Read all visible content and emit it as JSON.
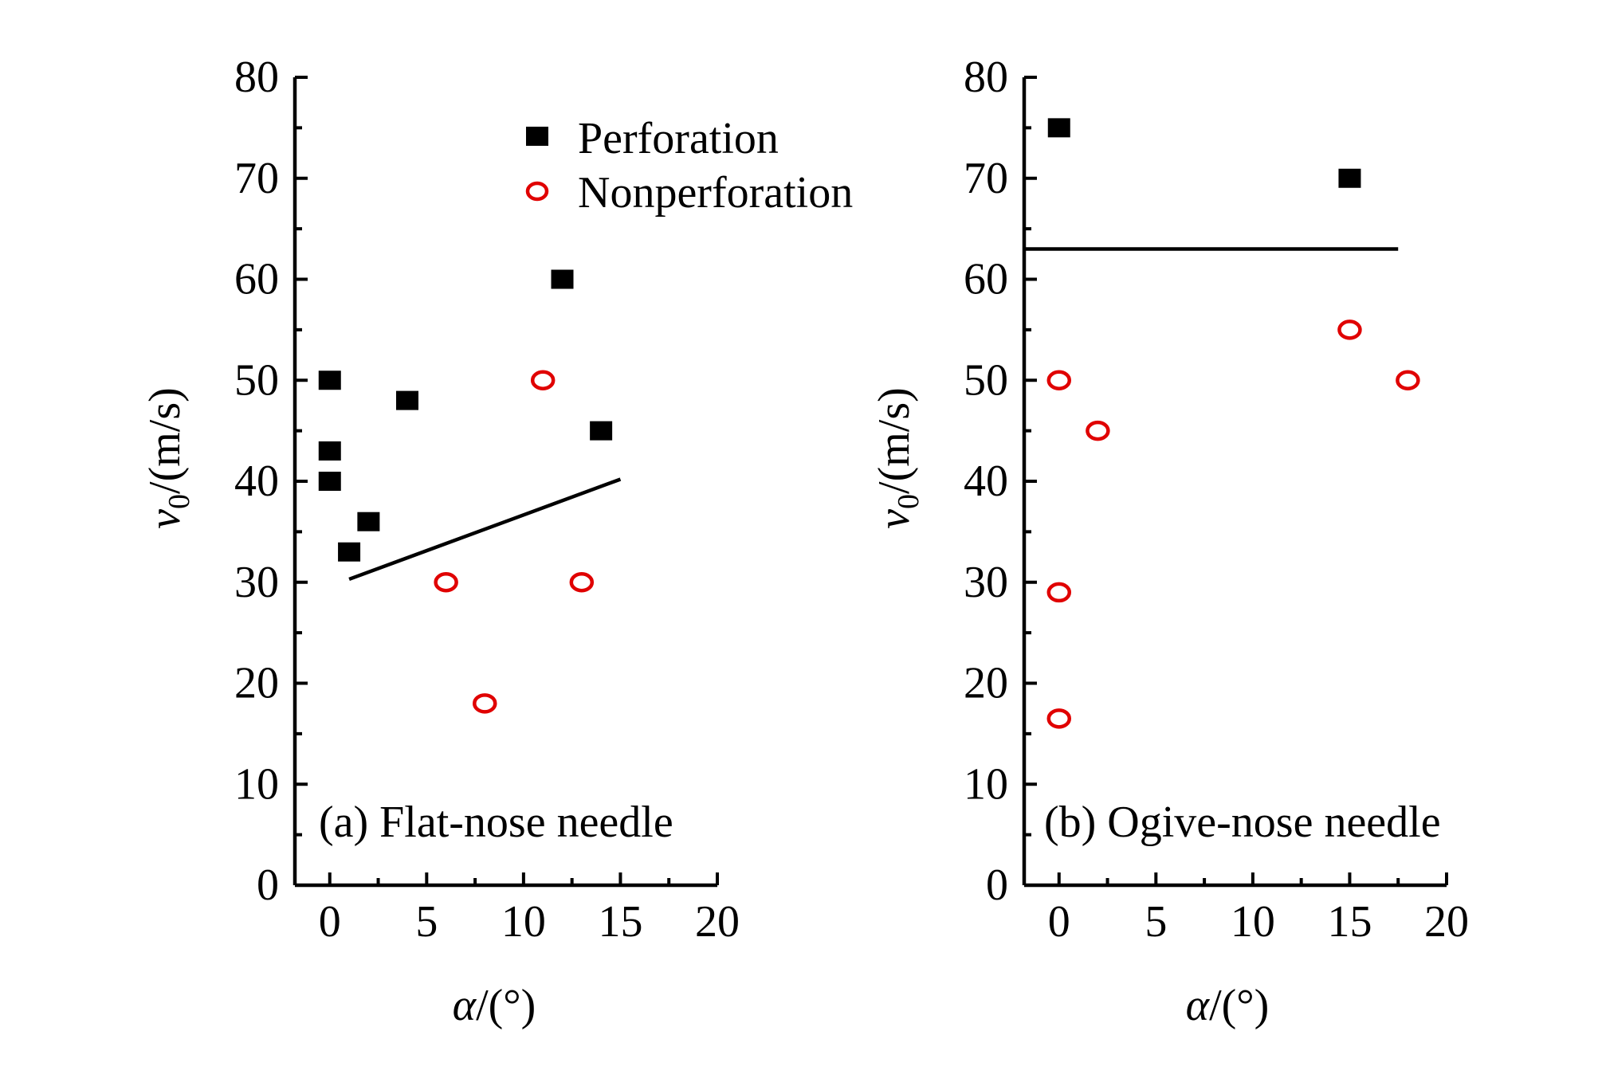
{
  "colors": {
    "perforation": "#000000",
    "nonperforation": "#e00000",
    "axis": "#000000"
  },
  "legend": {
    "perforation_label": "Perforation",
    "nonperforation_label": "Nonperforation",
    "perforation_icon": "filled-square-icon",
    "nonperforation_icon": "open-circle-icon"
  },
  "chart_data": [
    {
      "type": "scatter",
      "panel": "a",
      "title": "(a) Flat-nose needle",
      "xlabel_symbol": "α",
      "xlabel_unit": "/(°)",
      "ylabel_symbol": "v",
      "ylabel_sub": "0",
      "ylabel_unit": "/(m/s)",
      "xlim": [
        -1.8,
        20
      ],
      "ylim": [
        0,
        80
      ],
      "x_ticks": [
        0,
        5,
        10,
        15,
        20
      ],
      "y_ticks": [
        0,
        10,
        20,
        30,
        40,
        50,
        60,
        70,
        80
      ],
      "legend": "top-right",
      "series": [
        {
          "name": "Perforation",
          "marker": "square",
          "x": [
            0,
            0,
            0,
            1,
            2,
            4,
            12,
            14
          ],
          "y": [
            50,
            43,
            40,
            33,
            36,
            48,
            60,
            45
          ]
        },
        {
          "name": "Nonperforation",
          "marker": "circle",
          "x": [
            6,
            8,
            11,
            13
          ],
          "y": [
            30,
            18,
            50,
            30
          ]
        }
      ],
      "line": {
        "x": [
          1,
          15
        ],
        "y": [
          30.3,
          40.2
        ]
      }
    },
    {
      "type": "scatter",
      "panel": "b",
      "title": "(b) Ogive-nose needle",
      "xlabel_symbol": "α",
      "xlabel_unit": "/(°)",
      "ylabel_symbol": "v",
      "ylabel_sub": "0",
      "ylabel_unit": "/(m/s)",
      "xlim": [
        -1.8,
        20
      ],
      "ylim": [
        0,
        80
      ],
      "x_ticks": [
        0,
        5,
        10,
        15,
        20
      ],
      "y_ticks": [
        0,
        10,
        20,
        30,
        40,
        50,
        60,
        70,
        80
      ],
      "series": [
        {
          "name": "Perforation",
          "marker": "square",
          "x": [
            0,
            15
          ],
          "y": [
            75,
            70
          ]
        },
        {
          "name": "Nonperforation",
          "marker": "circle",
          "x": [
            0,
            0,
            0,
            2,
            15,
            18
          ],
          "y": [
            50,
            29,
            16.5,
            45,
            55,
            50
          ]
        }
      ],
      "line": {
        "x": [
          -1.8,
          17.5
        ],
        "y": [
          63,
          63
        ]
      }
    }
  ]
}
